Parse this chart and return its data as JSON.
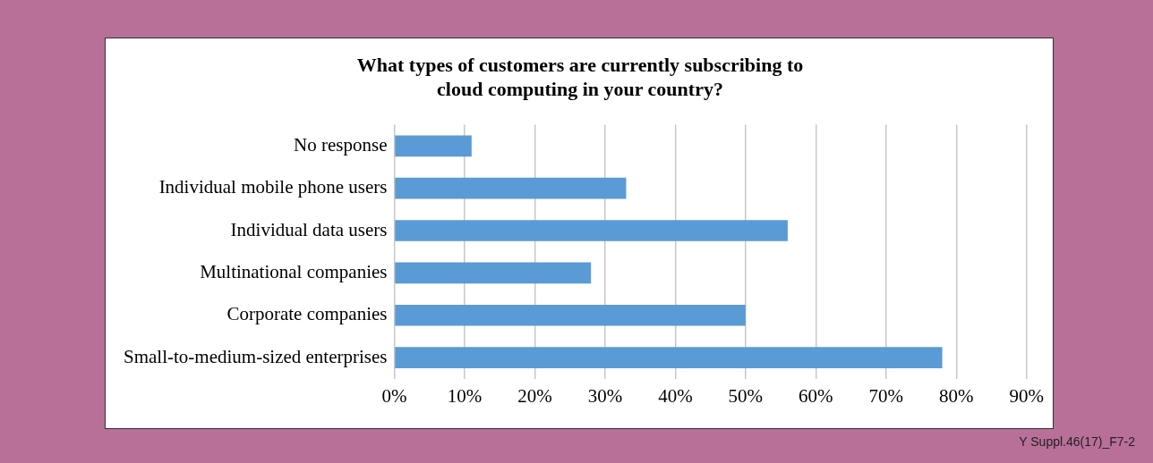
{
  "chart_data": {
    "type": "bar",
    "orientation": "horizontal",
    "title": "What types of customers are currently subscribing to cloud computing in your country?",
    "categories": [
      "No response",
      "Individual mobile phone users",
      "Individual data users",
      "Multinational companies",
      "Corporate companies",
      "Small-to-medium-sized enterprises"
    ],
    "values": [
      11,
      33,
      56,
      28,
      50,
      78
    ],
    "color": "#5b9bd5",
    "xlim": [
      0,
      90
    ],
    "xticks": [
      {
        "value": 0,
        "label": "0%"
      },
      {
        "value": 10,
        "label": "10%"
      },
      {
        "value": 20,
        "label": "20%"
      },
      {
        "value": 30,
        "label": "30%"
      },
      {
        "value": 40,
        "label": "40%"
      },
      {
        "value": 50,
        "label": "50%"
      },
      {
        "value": 60,
        "label": "60%"
      },
      {
        "value": 70,
        "label": "70%"
      },
      {
        "value": 80,
        "label": "80%"
      },
      {
        "value": 90,
        "label": "90%"
      }
    ],
    "grid": "x",
    "legend": false,
    "annotations": [
      "Y Suppl.46(17)_F7-2"
    ]
  }
}
